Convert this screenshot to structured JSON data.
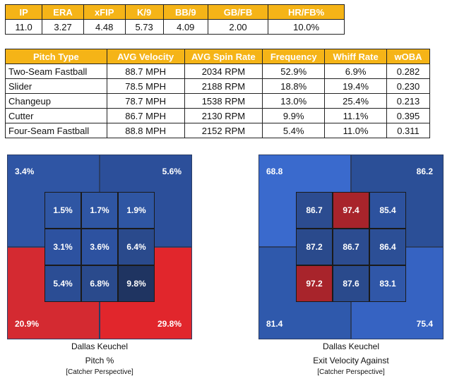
{
  "stats": {
    "headers": [
      "IP",
      "ERA",
      "xFIP",
      "K/9",
      "BB/9",
      "GB/FB",
      "HR/FB%"
    ],
    "values": [
      "11.0",
      "3.27",
      "4.48",
      "5.73",
      "4.09",
      "2.00",
      "10.0%"
    ]
  },
  "pitches": {
    "headers": [
      "Pitch Type",
      "AVG Velocity",
      "AVG Spin Rate",
      "Frequency",
      "Whiff Rate",
      "wOBA"
    ],
    "rows": [
      [
        "Two-Seam Fastball",
        "88.7 MPH",
        "2034 RPM",
        "52.9%",
        "6.9%",
        "0.282"
      ],
      [
        "Slider",
        "78.5 MPH",
        "2188 RPM",
        "18.8%",
        "19.4%",
        "0.230"
      ],
      [
        "Changeup",
        "78.7 MPH",
        "1538 RPM",
        "13.0%",
        "25.4%",
        "0.213"
      ],
      [
        "Cutter",
        "86.7 MPH",
        "2130 RPM",
        "9.9%",
        "11.1%",
        "0.395"
      ],
      [
        "Four-Seam Fastball",
        "88.8 MPH",
        "2152 RPM",
        "5.4%",
        "11.0%",
        "0.311"
      ]
    ]
  },
  "zone_left": {
    "outer": [
      "3.4%",
      "5.6%",
      "20.9%",
      "29.8%"
    ],
    "outer_colors": [
      "#2f55a4",
      "#2c4f9a",
      "#d42a31",
      "#e1262c"
    ],
    "inner": [
      "1.5%",
      "1.7%",
      "1.9%",
      "3.1%",
      "3.6%",
      "6.4%",
      "5.4%",
      "6.8%",
      "9.8%"
    ],
    "inner_colors": [
      "#2f56a3",
      "#2f56a3",
      "#2f56a3",
      "#2d52a0",
      "#2d52a0",
      "#2a4a8c",
      "#2b4d94",
      "#2a4a8c",
      "#1f3461"
    ],
    "caption_name": "Dallas Keuchel",
    "caption_metric": "Pitch %",
    "caption_note": "[Catcher Perspective]"
  },
  "zone_right": {
    "outer": [
      "68.8",
      "86.2",
      "81.4",
      "75.4"
    ],
    "outer_colors": [
      "#3a6acd",
      "#2b4f97",
      "#2f59ac",
      "#3663c2"
    ],
    "inner": [
      "86.7",
      "97.4",
      "85.4",
      "87.2",
      "86.7",
      "86.4",
      "97.2",
      "87.6",
      "83.1"
    ],
    "inner_colors": [
      "#2c4c90",
      "#a8242b",
      "#2d529e",
      "#2a4a8c",
      "#2c4c90",
      "#2c4f96",
      "#a8242b",
      "#2a4a8c",
      "#3057a8"
    ],
    "caption_name": "Dallas Keuchel",
    "caption_metric": "Exit Velocity Against",
    "caption_note": "[Catcher Perspective]"
  }
}
